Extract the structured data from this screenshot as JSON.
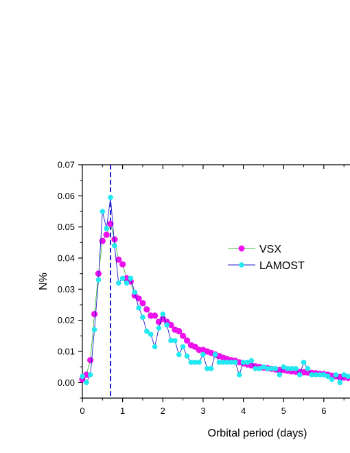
{
  "chart_data": {
    "type": "line",
    "xlabel": "Orbital period (days)",
    "ylabel": "N%",
    "xlim": [
      0,
      6.65
    ],
    "ylim": [
      -0.005,
      0.07
    ],
    "x_ticks": [
      "0",
      "1",
      "2",
      "3",
      "4",
      "5",
      "6"
    ],
    "y_ticks": [
      "0.00",
      "0.01",
      "0.02",
      "0.03",
      "0.04",
      "0.05",
      "0.06",
      "0.07"
    ],
    "reference_line": {
      "x": 0.7,
      "style": "dashed",
      "color": "#1a1acc"
    },
    "legend_position": "center-right",
    "series": [
      {
        "name": "VSX",
        "line_color": "#3cbf3c",
        "marker_color": "#ee11ee",
        "x": [
          0.0,
          0.1,
          0.2,
          0.3,
          0.4,
          0.5,
          0.6,
          0.7,
          0.8,
          0.9,
          1.0,
          1.1,
          1.2,
          1.3,
          1.4,
          1.5,
          1.6,
          1.7,
          1.8,
          1.9,
          2.0,
          2.1,
          2.2,
          2.3,
          2.4,
          2.5,
          2.6,
          2.7,
          2.8,
          2.9,
          3.0,
          3.1,
          3.2,
          3.3,
          3.4,
          3.5,
          3.6,
          3.7,
          3.8,
          3.9,
          4.0,
          4.1,
          4.2,
          4.3,
          4.4,
          4.5,
          4.6,
          4.7,
          4.8,
          4.9,
          5.0,
          5.1,
          5.2,
          5.3,
          5.4,
          5.5,
          5.6,
          5.7,
          5.8,
          5.9,
          6.0,
          6.1,
          6.2,
          6.3,
          6.4,
          6.5,
          6.6
        ],
        "y": [
          0.001,
          0.0025,
          0.0072,
          0.022,
          0.035,
          0.0455,
          0.0475,
          0.051,
          0.046,
          0.0395,
          0.038,
          0.0335,
          0.0325,
          0.028,
          0.027,
          0.0255,
          0.0235,
          0.0215,
          0.0215,
          0.0195,
          0.0205,
          0.0195,
          0.0185,
          0.017,
          0.0165,
          0.015,
          0.0135,
          0.012,
          0.0115,
          0.0105,
          0.0105,
          0.01,
          0.0095,
          0.009,
          0.0085,
          0.008,
          0.0075,
          0.0072,
          0.007,
          0.0065,
          0.0062,
          0.0058,
          0.0055,
          0.0052,
          0.005,
          0.0048,
          0.0046,
          0.0044,
          0.0042,
          0.004,
          0.004,
          0.0038,
          0.0036,
          0.0035,
          0.0034,
          0.0033,
          0.0032,
          0.0031,
          0.003,
          0.0028,
          0.0027,
          0.0025,
          0.0022,
          0.002,
          0.0018,
          0.0016,
          0.0015
        ]
      },
      {
        "name": "LAMOST",
        "line_color": "#1a1acc",
        "marker_color": "#22e8f0",
        "x": [
          0.0,
          0.1,
          0.2,
          0.3,
          0.4,
          0.5,
          0.6,
          0.7,
          0.8,
          0.9,
          1.0,
          1.1,
          1.2,
          1.3,
          1.4,
          1.5,
          1.6,
          1.7,
          1.8,
          1.9,
          2.0,
          2.1,
          2.2,
          2.3,
          2.4,
          2.5,
          2.6,
          2.7,
          2.8,
          2.9,
          3.0,
          3.1,
          3.2,
          3.3,
          3.4,
          3.5,
          3.6,
          3.7,
          3.8,
          3.9,
          4.0,
          4.1,
          4.2,
          4.3,
          4.4,
          4.5,
          4.6,
          4.7,
          4.8,
          4.9,
          5.0,
          5.1,
          5.2,
          5.3,
          5.4,
          5.5,
          5.6,
          5.7,
          5.8,
          5.9,
          6.0,
          6.1,
          6.2,
          6.3,
          6.4,
          6.5,
          6.6
        ],
        "y": [
          0.002,
          0.0,
          0.0025,
          0.017,
          0.033,
          0.055,
          0.0495,
          0.0595,
          0.044,
          0.032,
          0.0335,
          0.032,
          0.0335,
          0.029,
          0.024,
          0.021,
          0.0165,
          0.0155,
          0.0115,
          0.0175,
          0.022,
          0.0185,
          0.0135,
          0.0135,
          0.009,
          0.0115,
          0.0085,
          0.0065,
          0.0065,
          0.0065,
          0.009,
          0.0045,
          0.0045,
          0.009,
          0.0065,
          0.0065,
          0.0065,
          0.0065,
          0.0065,
          0.0025,
          0.0065,
          0.0065,
          0.007,
          0.0045,
          0.0045,
          0.005,
          0.0045,
          0.0045,
          0.0045,
          0.0025,
          0.005,
          0.0045,
          0.0045,
          0.0045,
          0.0025,
          0.0065,
          0.0045,
          0.0025,
          0.0025,
          0.0025,
          0.0025,
          0.002,
          0.001,
          0.0025,
          0.0,
          0.0025,
          0.002
        ]
      }
    ]
  }
}
